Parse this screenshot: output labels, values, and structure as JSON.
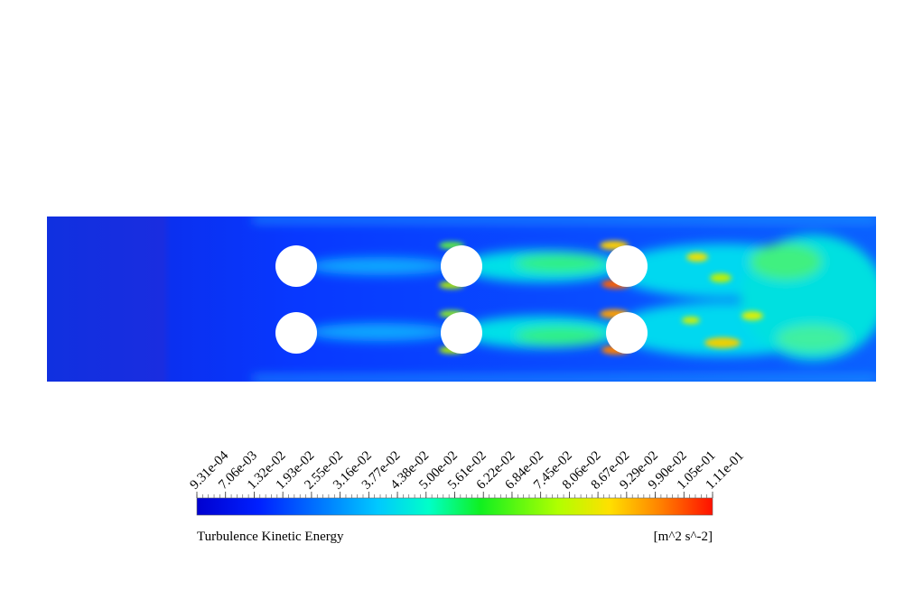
{
  "colorbar": {
    "ticks": [
      "9.31e-04",
      "7.06e-03",
      "1.32e-02",
      "1.93e-02",
      "2.55e-02",
      "3.16e-02",
      "3.77e-02",
      "4.38e-02",
      "5.00e-02",
      "5.61e-02",
      "6.22e-02",
      "6.84e-02",
      "7.45e-02",
      "8.06e-02",
      "8.67e-02",
      "9.29e-02",
      "9.90e-02",
      "1.05e-01",
      "1.11e-01"
    ],
    "title": "Turbulence Kinetic Energy",
    "unit": "[m^2 s^-2]"
  }
}
